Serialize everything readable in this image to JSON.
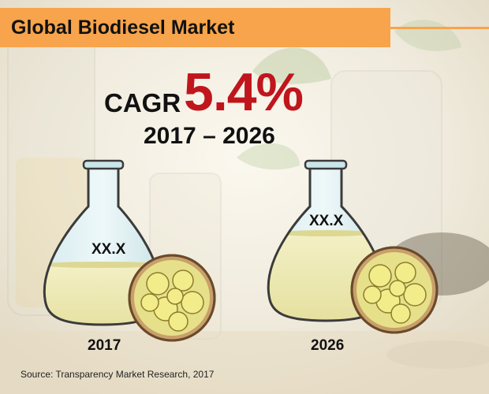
{
  "title": "Global Biodiesel Market",
  "cagr": {
    "label": "CAGR",
    "value": "5.4%",
    "period": "2017 – 2026"
  },
  "flasks": [
    {
      "year": "2017",
      "value_label": "XX.X"
    },
    {
      "year": "2026",
      "value_label": "XX.X"
    }
  ],
  "source": "Source: Transparency Market Research, 2017",
  "colors": {
    "title_bar": "#f7a44c",
    "cagr_value": "#c0151d",
    "liquid": "#ece9b0",
    "flask_top": "#c9e6ea"
  },
  "background_decor_icons": [
    "glass-jar-icon",
    "leaf-icon",
    "seed-bowl-icon"
  ]
}
